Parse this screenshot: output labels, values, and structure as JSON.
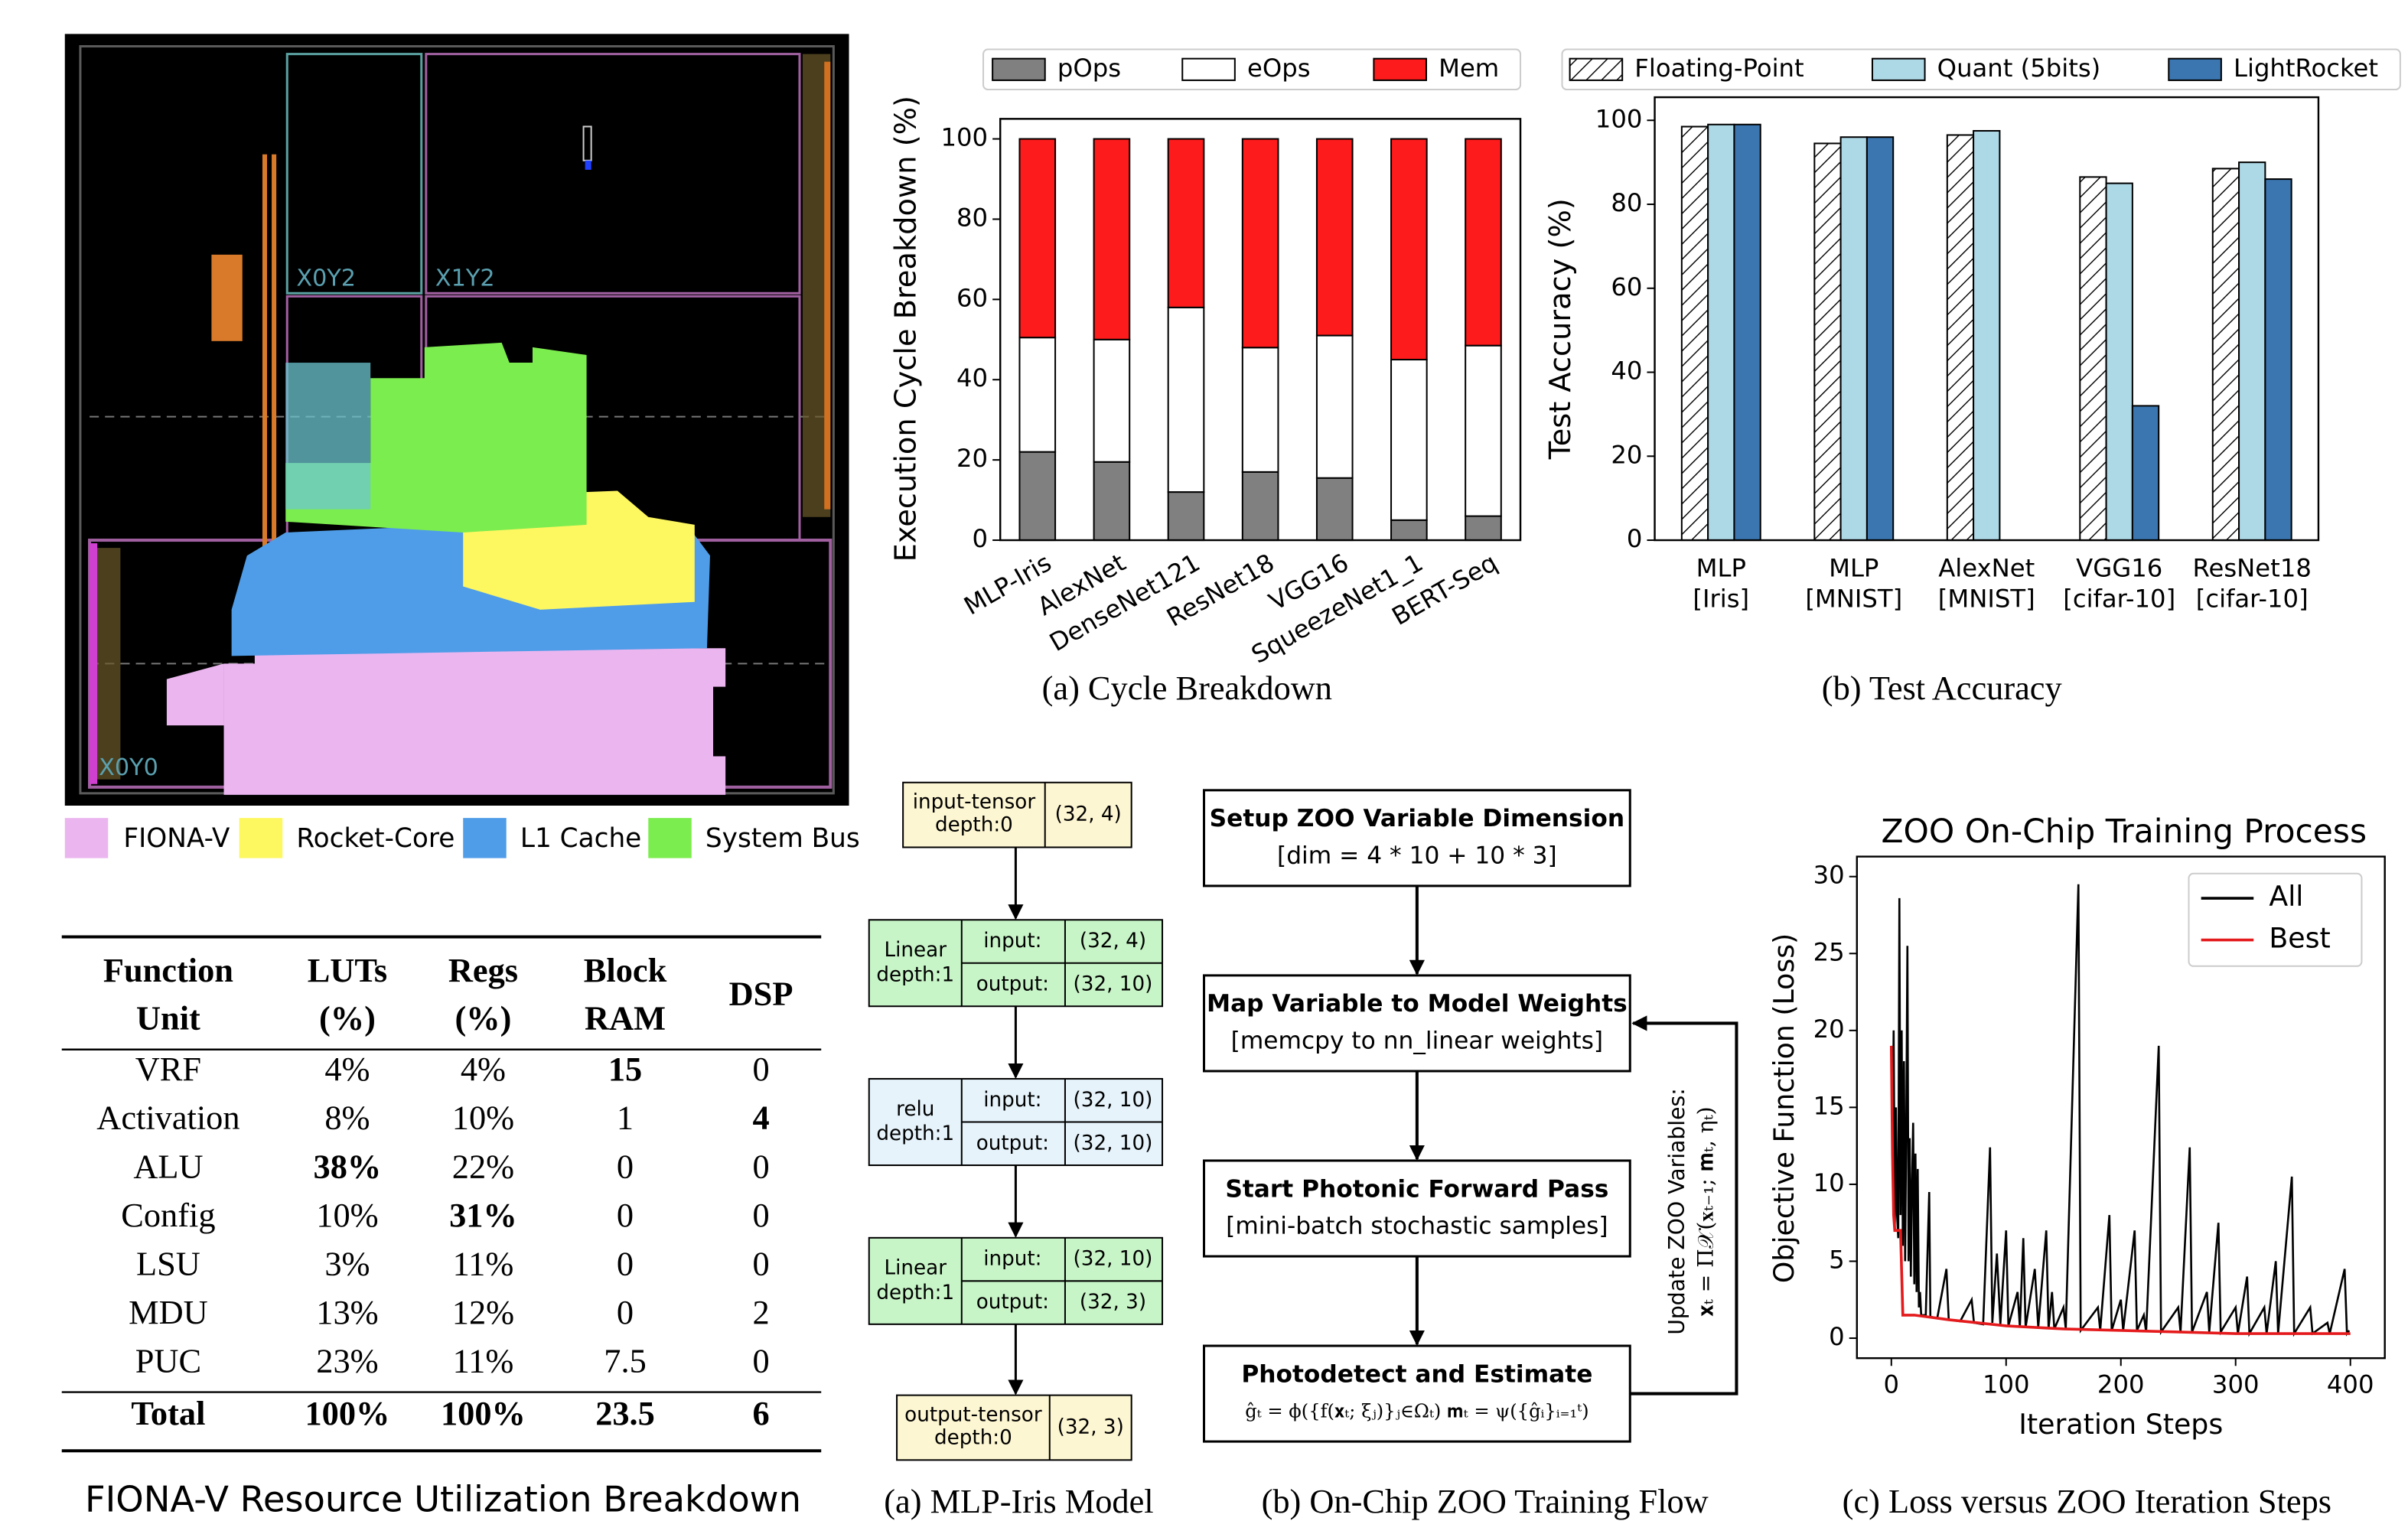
{
  "floorplan": {
    "region_labels": [
      "X0Y2",
      "X1Y2",
      "X0Y0"
    ],
    "legend": [
      {
        "name": "FIONA-V",
        "color": "#ebb5f0"
      },
      {
        "name": "Rocket-Core",
        "color": "#fdf760"
      },
      {
        "name": "L1 Cache",
        "color": "#4f9de8"
      },
      {
        "name": "System Bus",
        "color": "#7ced4e"
      }
    ]
  },
  "table": {
    "header": [
      [
        "Function",
        "Unit"
      ],
      [
        "LUTs",
        "(%)"
      ],
      [
        "Regs",
        "(%)"
      ],
      [
        "Block",
        "RAM"
      ],
      [
        "DSP"
      ]
    ],
    "rows": [
      [
        "VRF",
        "4%",
        "4%",
        "15",
        "0"
      ],
      [
        "Activation",
        "8%",
        "10%",
        "1",
        "4"
      ],
      [
        "ALU",
        "38%",
        "22%",
        "0",
        "0"
      ],
      [
        "Config",
        "10%",
        "31%",
        "0",
        "0"
      ],
      [
        "LSU",
        "3%",
        "11%",
        "0",
        "0"
      ],
      [
        "MDU",
        "13%",
        "12%",
        "0",
        "2"
      ],
      [
        "PUC",
        "23%",
        "11%",
        "7.5",
        "0"
      ]
    ],
    "bold_cells": [
      [
        0,
        3
      ],
      [
        1,
        4
      ],
      [
        2,
        1
      ],
      [
        3,
        2
      ]
    ],
    "total": [
      "Total",
      "100%",
      "100%",
      "23.5",
      "6"
    ],
    "caption": "FIONA-V Resource Utilization Breakdown"
  },
  "chart_data": [
    {
      "type": "stacked_bar",
      "caption": "(a) Cycle Breakdown",
      "y_label": "Execution Cycle Breakdown (%)",
      "categories": [
        "MLP-Iris",
        "AlexNet",
        "DenseNet121",
        "ResNet18",
        "VGG16",
        "SqueezeNet1_1",
        "BERT-Seq"
      ],
      "series": [
        {
          "name": "pOps",
          "color": "#808080",
          "values": [
            22,
            19.5,
            12,
            17,
            15.5,
            5,
            6
          ]
        },
        {
          "name": "eOps",
          "color": "#ffffff",
          "values": [
            28.5,
            30.5,
            46,
            31,
            35.5,
            40,
            42.5
          ]
        },
        {
          "name": "Mem",
          "color": "#fd1b1b",
          "values": [
            49.5,
            50,
            42,
            52,
            49,
            55,
            51.5
          ]
        }
      ],
      "ylim": [
        0,
        105
      ],
      "yticks": [
        0,
        20,
        40,
        60,
        80,
        100
      ]
    },
    {
      "type": "grouped_bar",
      "caption": "(b) Test Accuracy",
      "y_label": "Test Accuracy (%)",
      "categories": [
        [
          "MLP",
          "[Iris]"
        ],
        [
          "MLP",
          "[MNIST]"
        ],
        [
          "AlexNet",
          "[MNIST]"
        ],
        [
          "VGG16",
          "[cifar-10]"
        ],
        [
          "ResNet18",
          "[cifar-10]"
        ]
      ],
      "series": [
        {
          "name": "Floating-Point",
          "color": "#ffffff",
          "hatch": true,
          "values": [
            98.5,
            94.5,
            96.5,
            86.5,
            88.5
          ]
        },
        {
          "name": "Quant (5bits)",
          "color": "#add8e6",
          "hatch": false,
          "values": [
            99,
            96,
            97.5,
            85,
            90
          ]
        },
        {
          "name": "LightRocket",
          "color": "#3b76b0",
          "hatch": false,
          "values": [
            99,
            96,
            null,
            32,
            86
          ]
        }
      ],
      "ylim": [
        0,
        105.5
      ],
      "yticks": [
        0,
        20,
        40,
        60,
        80,
        100
      ]
    },
    {
      "type": "line",
      "title": "ZOO On-Chip Training Process",
      "caption": "(c) Loss versus ZOO Iteration Steps",
      "x_label": "Iteration Steps",
      "y_label": "Objective Function (Loss)",
      "legend": "upper right",
      "series": [
        {
          "name": "All",
          "color": "#000000",
          "x": [
            0,
            1,
            2,
            3,
            4,
            5,
            6,
            7,
            8,
            9,
            10,
            11,
            12,
            13,
            14,
            15,
            16,
            17,
            18,
            19,
            20,
            21,
            22,
            23,
            24,
            25,
            26,
            30,
            33,
            34,
            40,
            48,
            50,
            60,
            70,
            72,
            80,
            86,
            88,
            92,
            95,
            100,
            102,
            110,
            112,
            115,
            117,
            125,
            128,
            135,
            137,
            140,
            142,
            150,
            152,
            163,
            165,
            180,
            182,
            190,
            192,
            200,
            202,
            212,
            214,
            220,
            222,
            233,
            235,
            250,
            252,
            260,
            262,
            275,
            277,
            285,
            287,
            300,
            302,
            310,
            312,
            325,
            327,
            335,
            337,
            349,
            351,
            365,
            367,
            380,
            382,
            395,
            397,
            399
          ],
          "values": [
            19,
            12,
            20,
            7,
            15,
            8,
            6.5,
            28.6,
            8,
            20,
            6,
            18,
            5,
            14,
            25.5,
            5,
            13,
            4,
            10,
            14,
            3.5,
            12,
            3,
            11,
            2,
            3,
            1.5,
            1.5,
            9.5,
            1.4,
            1.3,
            4.5,
            1.2,
            1.1,
            2.5,
            1,
            0.9,
            12.4,
            1,
            5.5,
            0.9,
            7,
            0.8,
            3,
            0.7,
            6.5,
            0.7,
            4.5,
            0.7,
            7,
            0.6,
            3,
            0.6,
            2,
            0.6,
            29.5,
            0.5,
            2,
            0.5,
            8,
            0.5,
            2.5,
            0.5,
            7,
            0.5,
            1.5,
            0.4,
            19,
            0.4,
            2,
            0.4,
            12.4,
            0.4,
            3,
            0.4,
            7.5,
            0.4,
            2,
            0.3,
            4,
            0.3,
            2,
            0.3,
            5,
            0.3,
            10.5,
            0.3,
            2,
            0.3,
            1,
            0.3,
            4.5,
            0.3,
            0.5
          ]
        },
        {
          "name": "Best",
          "color": "#e41a1c",
          "x": [
            0,
            1,
            2,
            3,
            5,
            8,
            10,
            20,
            30,
            50,
            75,
            100,
            150,
            200,
            250,
            300,
            350,
            400
          ],
          "values": [
            19,
            12,
            8,
            7,
            7,
            7,
            1.5,
            1.5,
            1.4,
            1.2,
            1.0,
            0.8,
            0.6,
            0.5,
            0.4,
            0.3,
            0.3,
            0.3
          ]
        }
      ],
      "xlim": [
        -30,
        430
      ],
      "ylim": [
        -1.3,
        31.3
      ],
      "xticks": [
        0,
        100,
        200,
        300,
        400
      ],
      "yticks": [
        0,
        5,
        10,
        15,
        20,
        25,
        30
      ]
    }
  ],
  "model_graph": {
    "caption": "(a) MLP-Iris Model",
    "nodes": [
      {
        "label": [
          "input-tensor",
          "depth:0"
        ],
        "shape": "(32, 4)"
      },
      {
        "label": [
          "Linear",
          "depth:1"
        ],
        "ports": [
          "input:",
          "output:"
        ],
        "shapes": [
          "(32, 4)",
          "(32, 10)"
        ]
      },
      {
        "label": [
          "relu",
          "depth:1"
        ],
        "ports": [
          "input:",
          "output:"
        ],
        "shapes": [
          "(32, 10)",
          "(32, 10)"
        ]
      },
      {
        "label": [
          "Linear",
          "depth:1"
        ],
        "ports": [
          "input:",
          "output:"
        ],
        "shapes": [
          "(32, 10)",
          "(32, 3)"
        ]
      },
      {
        "label": [
          "output-tensor",
          "depth:0"
        ],
        "shape": "(32, 3)"
      }
    ]
  },
  "training_flow": {
    "caption": "(b) On-Chip ZOO Training Flow",
    "steps": [
      {
        "title": "Setup ZOO Variable Dimension",
        "detail": "[dim = 4 * 10 + 10 * 3]"
      },
      {
        "title": "Map Variable to Model Weights",
        "detail": "[memcpy to nn_linear weights]"
      },
      {
        "title": "Start Photonic Forward Pass",
        "detail": "[mini-batch stochastic samples]"
      },
      {
        "title": "Photodetect and Estimate",
        "detail": "ĝₜ = ϕ({f(𝐱ₜ; ξⱼ)}ⱼ∈Ωₜ)   𝐦ₜ = ψ({ĝᵢ}ᵢ₌₁ᵗ)"
      }
    ],
    "feedback": [
      "Update ZOO Variables:",
      "𝐱ₜ = Π𝒳(𝐱ₜ₋₁; 𝐦ₜ, ηₜ)"
    ]
  }
}
